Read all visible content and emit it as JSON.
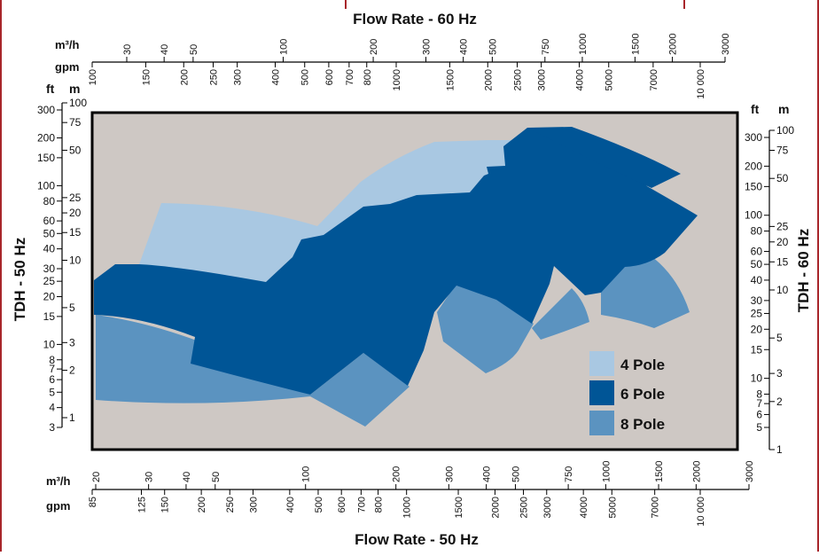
{
  "chart_data": {
    "type": "area",
    "title_top": "Flow Rate - 60 Hz",
    "title_bottom": "Flow Rate - 50 Hz",
    "left_axis_title": "TDH - 50 Hz",
    "right_axis_title": "TDH - 60 Hz",
    "top_axis": {
      "unit_m3h": "m³/h",
      "unit_gpm": "gpm",
      "m3h_ticks": [
        "30",
        "40",
        "50",
        "100",
        "200",
        "300",
        "400",
        "500",
        "750",
        "1000",
        "1500",
        "2000",
        "3000"
      ],
      "gpm_ticks": [
        "100",
        "150",
        "200",
        "250",
        "300",
        "400",
        "500",
        "600",
        "700",
        "800",
        "1000",
        "1500",
        "2000",
        "2500",
        "3000",
        "4000",
        "5000",
        "7000",
        "10 000"
      ]
    },
    "bottom_axis": {
      "unit_m3h": "m³/h",
      "unit_gpm": "gpm",
      "m3h_ticks": [
        "20",
        "30",
        "40",
        "50",
        "100",
        "200",
        "300",
        "400",
        "500",
        "750",
        "1000",
        "1500",
        "2000",
        "3000"
      ],
      "gpm_ticks": [
        "85",
        "125",
        "150",
        "200",
        "250",
        "300",
        "400",
        "500",
        "600",
        "700",
        "800",
        "1000",
        "1500",
        "2000",
        "2500",
        "3000",
        "4000",
        "5000",
        "7000",
        "10 000"
      ]
    },
    "left_axis": {
      "unit_ft": "ft",
      "unit_m": "m",
      "ft_ticks": [
        "300",
        "200",
        "150",
        "100",
        "80",
        "60",
        "50",
        "40",
        "30",
        "25",
        "20",
        "15",
        "10",
        "8",
        "7",
        "6",
        "5",
        "4",
        "3"
      ],
      "m_ticks": [
        "100",
        "75",
        "50",
        "25",
        "20",
        "15",
        "10",
        "5",
        "3",
        "2",
        "1"
      ]
    },
    "right_axis": {
      "unit_ft": "ft",
      "unit_m": "m",
      "ft_ticks": [
        "300",
        "200",
        "150",
        "100",
        "80",
        "60",
        "50",
        "40",
        "30",
        "25",
        "20",
        "15",
        "10",
        "8",
        "7",
        "6",
        "5"
      ],
      "m_ticks": [
        "100",
        "75",
        "50",
        "25",
        "20",
        "15",
        "10",
        "5",
        "3",
        "2",
        "1"
      ]
    },
    "legend": {
      "placement": "bottom-right",
      "items": [
        {
          "name": "4 Pole",
          "color": "#a9c8e2"
        },
        {
          "name": "6 Pole",
          "color": "#005596"
        },
        {
          "name": "8 Pole",
          "color": "#5b93c0"
        }
      ]
    },
    "plot_background": "#cec8c4",
    "frame_color": "#a8262b"
  }
}
